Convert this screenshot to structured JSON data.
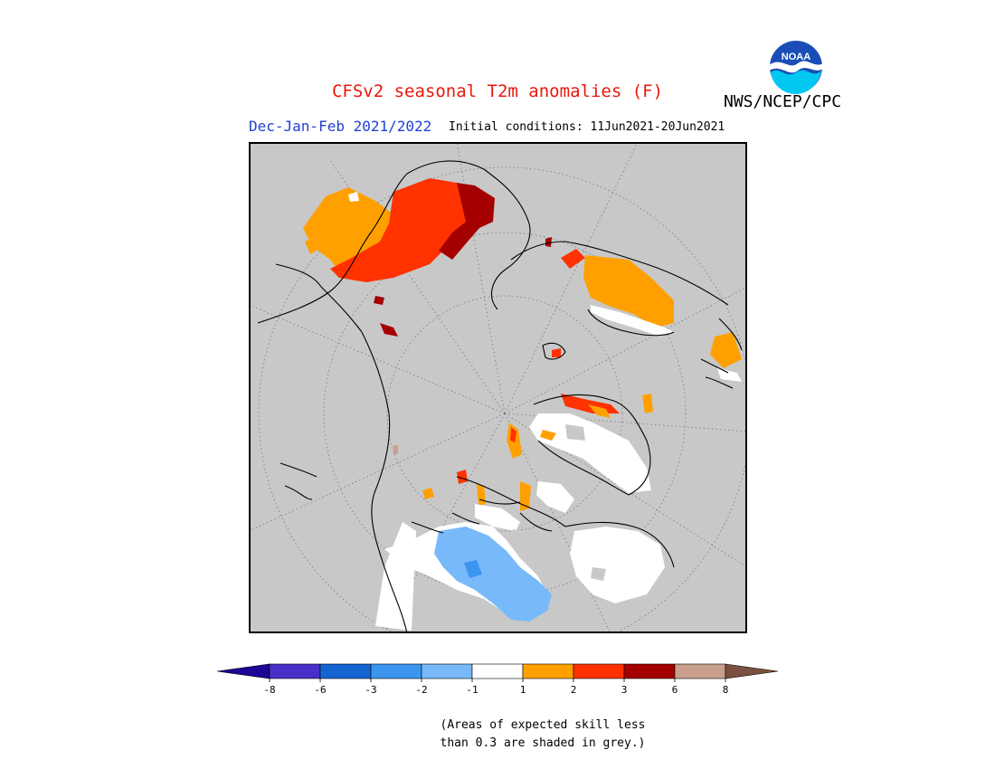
{
  "header": {
    "title": "CFSv2 seasonal T2m anomalies (F)",
    "org": "NWS/NCEP/CPC",
    "season": "Dec-Jan-Feb 2021/2022",
    "init": "Initial conditions: 11Jun2021-20Jun2021",
    "logo_text": "NOAA"
  },
  "map": {
    "projection": "north-polar-stereographic",
    "background_color": "#c8c8c8",
    "coast_color": "#000000"
  },
  "legend": {
    "colors": [
      "#1c0696",
      "#4630c8",
      "#1464d2",
      "#3c96f0",
      "#78b9fa",
      "#ffffff",
      "#ffa000",
      "#ff3200",
      "#a50000",
      "#c8a08c",
      "#7a5040"
    ],
    "labels": [
      "-8",
      "-6",
      "-3",
      "-2",
      "-1",
      "1",
      "2",
      "3",
      "6",
      "8"
    ]
  },
  "note": {
    "line1": "(Areas of expected skill less",
    "line2": "than 0.3 are shaded in grey.)"
  }
}
